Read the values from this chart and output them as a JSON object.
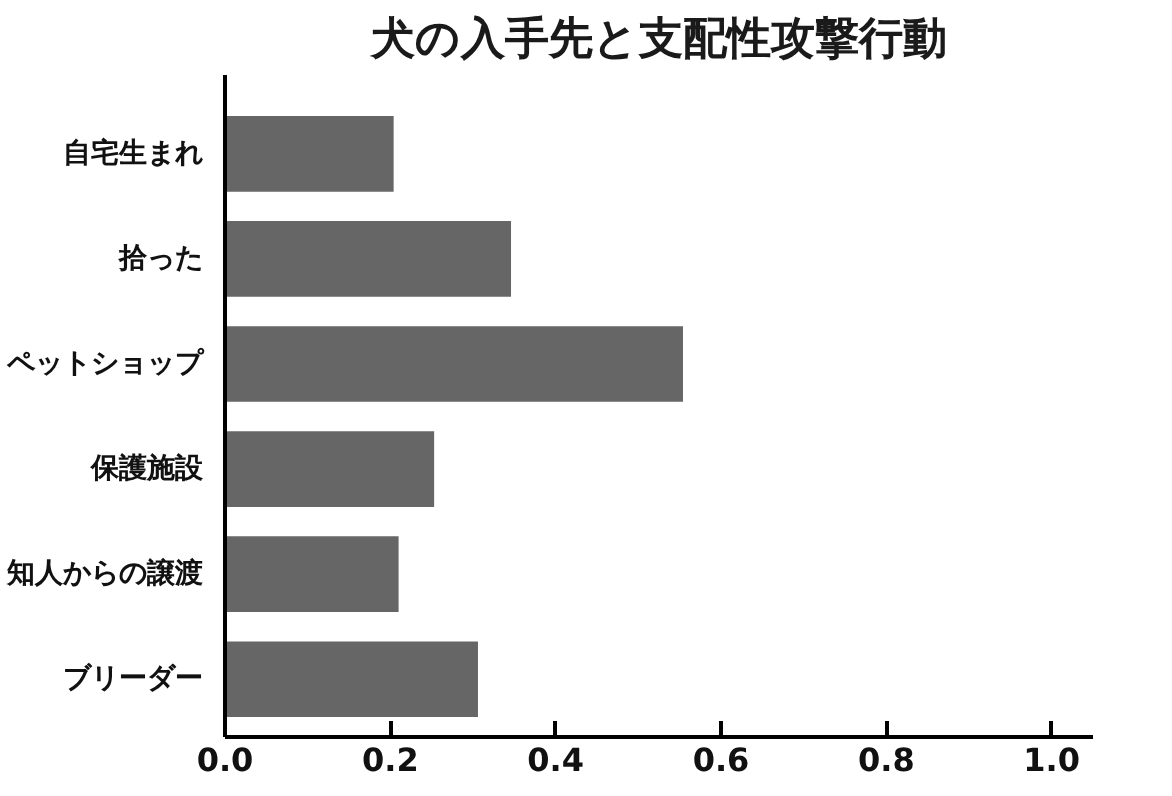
{
  "chart_data": {
    "type": "bar",
    "orientation": "horizontal",
    "title": "犬の入手先と支配性攻撃行動",
    "categories": [
      "自宅生まれ",
      "拾った",
      "ペットショップ",
      "保護施設",
      "知人からの譲渡",
      "ブリーダー"
    ],
    "values": [
      0.204,
      0.346,
      0.554,
      0.253,
      0.21,
      0.306
    ],
    "color": "#666666",
    "xlim": [
      0,
      1.05
    ],
    "xticks": [
      {
        "value": 0,
        "label": "0.0"
      },
      {
        "value": 0.2,
        "label": "0.2"
      },
      {
        "value": 0.4,
        "label": "0.4"
      },
      {
        "value": 0.6,
        "label": "0.6"
      },
      {
        "value": 0.8,
        "label": "0.8"
      },
      {
        "value": 1,
        "label": "1.0"
      }
    ],
    "grid": false
  }
}
